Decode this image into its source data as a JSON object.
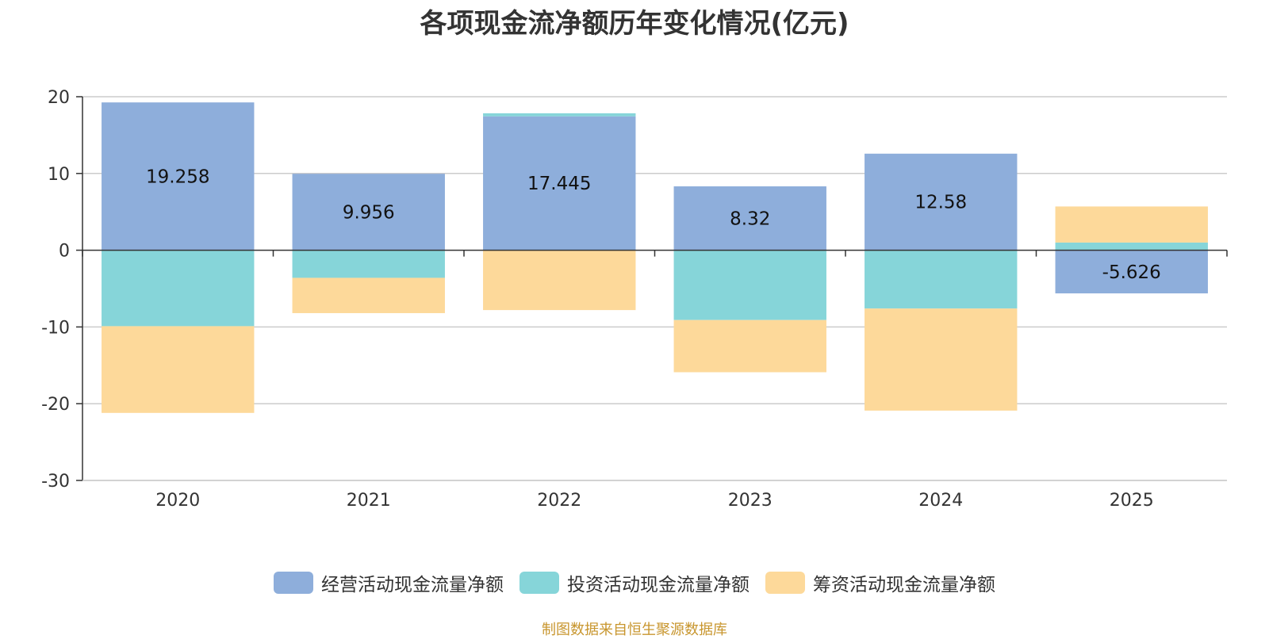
{
  "title": "各项现金流净额历年变化情况(亿元)",
  "source": "制图数据来自恒生聚源数据库",
  "chart_data": {
    "type": "bar",
    "stacked": true,
    "categories": [
      "2020",
      "2021",
      "2022",
      "2023",
      "2024",
      "2025"
    ],
    "ylim": [
      -30,
      20
    ],
    "yticks": [
      20,
      10,
      0,
      -10,
      -20,
      -30
    ],
    "grid": true,
    "legend_position": "bottom",
    "series": [
      {
        "name": "经营活动现金流量净额",
        "color": "#8eaedb",
        "values": [
          19.258,
          9.956,
          17.445,
          8.32,
          12.58,
          -5.626
        ],
        "labels": [
          "19.258",
          "9.956",
          "17.445",
          "8.32",
          "12.58",
          "-5.626"
        ]
      },
      {
        "name": "投资活动现金流量净额",
        "color": "#86d5d9",
        "values": [
          -9.9,
          -3.6,
          0.4,
          -9.1,
          -7.6,
          1.0
        ]
      },
      {
        "name": "筹资活动现金流量净额",
        "color": "#fdd99a",
        "values": [
          -11.3,
          -4.6,
          -7.8,
          -6.8,
          -13.3,
          4.7
        ]
      }
    ]
  }
}
